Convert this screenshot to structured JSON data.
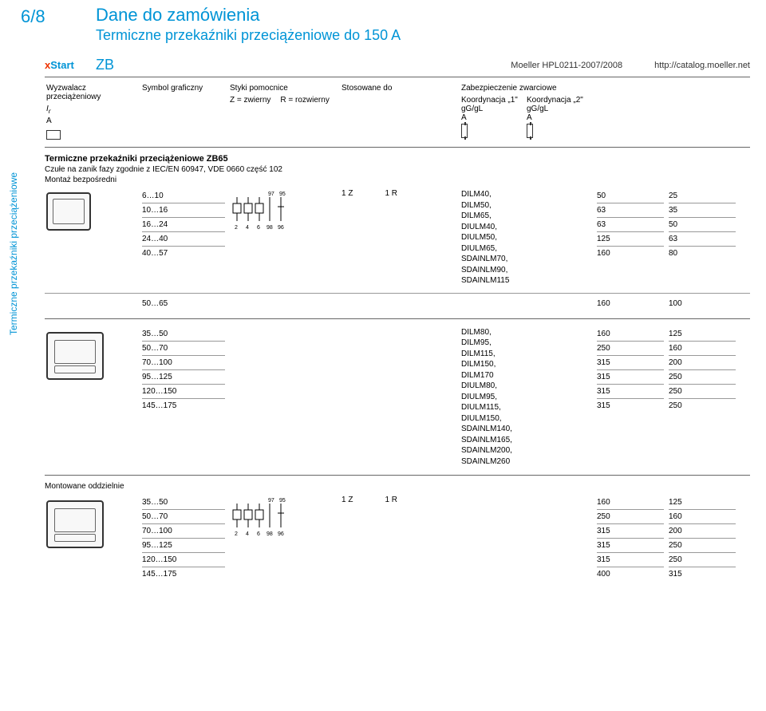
{
  "page_num": "6/8",
  "title1": "Dane do zamówienia",
  "title2": "Termiczne przekaźniki przeciążeniowe do 150 A",
  "vertical_label": "Termiczne przekaźniki przeciążeniowe",
  "brand_prefix": "x",
  "brand": "Start",
  "series": "ZB",
  "catalog": "Moeller HPL0211-2007/2008",
  "url": "http://catalog.moeller.net",
  "head": {
    "c1": "Wyzwalacz przeciążeniowy",
    "c1_sym_i": "I",
    "c1_sym_sub": "r",
    "c1_unit": "A",
    "c2": "Symbol graficzny",
    "c3": "Styki pomocnice",
    "c4": "Stosowane do",
    "c5": "Zabezpieczenie zwarciowe",
    "z_eq": "Z = zwierny",
    "r_eq": "R = rozwierny",
    "k1": "Koordynacja „1\"",
    "k2": "Koordynacja „2\"",
    "gg": "gG/gL",
    "unitA": "A"
  },
  "zb65": {
    "title": "Termiczne przekaźniki przeciążeniowe ZB65",
    "sub": "Czułe na zanik fazy zgodnie z IEC/EN 60947, VDE 0660 część 102",
    "sub2": "Montaż bezpośredni",
    "z": "1 Z",
    "r": "1 R",
    "assoc": [
      "DILM40,",
      "DILM50,",
      "DILM65,",
      "DIULM40,",
      "DIULM50,",
      "DIULM65,",
      "SDAINLM70,",
      "SDAINLM90,",
      "SDAINLM115"
    ],
    "rows": [
      {
        "range": "6…10",
        "k1": "50",
        "k2": "25"
      },
      {
        "range": "10…16",
        "k1": "63",
        "k2": "35"
      },
      {
        "range": "16…24",
        "k1": "63",
        "k2": "50"
      },
      {
        "range": "24…40",
        "k1": "125",
        "k2": "63"
      },
      {
        "range": "40…57",
        "k1": "160",
        "k2": "80"
      }
    ],
    "extra": {
      "range": "50…65",
      "k1": "160",
      "k2": "100"
    }
  },
  "block2": {
    "assoc": [
      "DILM80,",
      "DILM95,",
      "DILM115,",
      "DILM150,",
      "DILM170",
      "DIULM80,",
      "DIULM95,",
      "DIULM115,",
      "DIULM150,",
      "SDAINLM140,",
      "SDAINLM165,",
      "SDAINLM200,",
      "SDAINLM260"
    ],
    "rows": [
      {
        "range": "35…50",
        "k1": "160",
        "k2": "125"
      },
      {
        "range": "50…70",
        "k1": "250",
        "k2": "160"
      },
      {
        "range": "70…100",
        "k1": "315",
        "k2": "200"
      },
      {
        "range": "95…125",
        "k1": "315",
        "k2": "250"
      },
      {
        "range": "120…150",
        "k1": "315",
        "k2": "250"
      },
      {
        "range": "145…175",
        "k1": "315",
        "k2": "250"
      }
    ]
  },
  "block3": {
    "title": "Montowane oddzielnie",
    "z": "1 Z",
    "r": "1 R",
    "rows": [
      {
        "range": "35…50",
        "k1": "160",
        "k2": "125"
      },
      {
        "range": "50…70",
        "k1": "250",
        "k2": "160"
      },
      {
        "range": "70…100",
        "k1": "315",
        "k2": "200"
      },
      {
        "range": "95…125",
        "k1": "315",
        "k2": "250"
      },
      {
        "range": "120…150",
        "k1": "315",
        "k2": "250"
      },
      {
        "range": "145…175",
        "k1": "400",
        "k2": "315"
      }
    ]
  },
  "svg_labels": {
    "n97": "97",
    "n95": "95",
    "n2": "2",
    "n4": "4",
    "n6": "6",
    "n98": "98",
    "n96": "96"
  }
}
